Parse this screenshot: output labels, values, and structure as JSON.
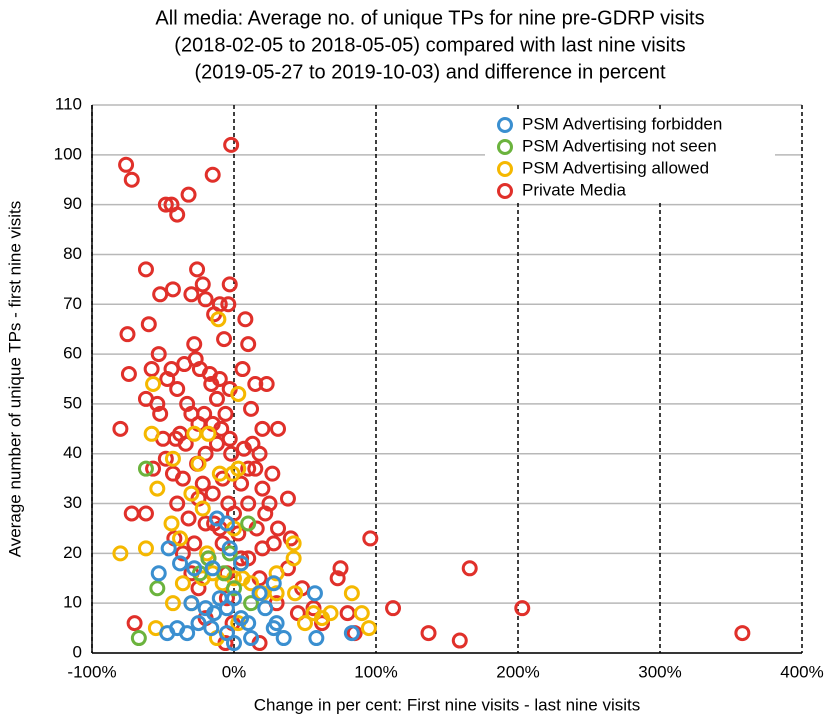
{
  "chart_data": {
    "type": "scatter",
    "title": [
      "All media: Average no. of unique TPs for nine pre-GDRP visits",
      "(2018-02-05 to 2018-05-05) compared with last nine visits",
      "(2019-05-27 to 2019-10-03) and difference in percent"
    ],
    "x_label": "Change in per cent:  First nine visits - last nine visits",
    "y_label": "Average number of unique TPs - first nine visits",
    "xlim": [
      -100,
      400
    ],
    "ylim": [
      0,
      110
    ],
    "xticks": [
      {
        "value": -100,
        "label": "-100%"
      },
      {
        "value": 0,
        "label": "0%"
      },
      {
        "value": 100,
        "label": "100%"
      },
      {
        "value": 200,
        "label": "200%"
      },
      {
        "value": 300,
        "label": "300%"
      },
      {
        "value": 400,
        "label": "400%"
      }
    ],
    "yticks": [
      0,
      10,
      20,
      30,
      40,
      50,
      60,
      70,
      80,
      90,
      100,
      110
    ],
    "grid": true,
    "legend": "upper right",
    "series": [
      {
        "name": "Private Media",
        "color": "#e0302a",
        "x": [
          -76,
          -72,
          -2,
          -15,
          -32,
          -44,
          -40,
          -48,
          -62,
          -26,
          -22,
          -3,
          -20,
          -30,
          -52,
          -43,
          -10,
          -4,
          -14,
          -75,
          -60,
          -7,
          10,
          8,
          -28,
          -53,
          -35,
          -24,
          -17,
          -44,
          -74,
          -58,
          -27,
          6,
          15,
          23,
          -47,
          -40,
          -10,
          -16,
          -3,
          -12,
          -62,
          -54,
          -52,
          -80,
          -30,
          -21,
          12,
          -6,
          -25,
          -15,
          -41,
          -3,
          20,
          31,
          -34,
          -12,
          -2,
          13,
          18,
          -48,
          -26,
          -20,
          10,
          27,
          -57,
          -43,
          -36,
          -8,
          5,
          20,
          -40,
          -25,
          -15,
          -4,
          10,
          22,
          -62,
          -72,
          -32,
          -20,
          -10,
          3,
          16,
          31,
          40,
          -42,
          -28,
          -8,
          20,
          28,
          -36,
          -18,
          10,
          38,
          -5,
          18,
          48,
          75,
          73,
          96,
          166,
          -25,
          -5,
          30,
          56,
          80,
          112,
          203,
          -20,
          -1,
          62,
          -70,
          137,
          159,
          358,
          -6,
          18,
          -33,
          -38,
          38,
          -14,
          25,
          7,
          -50,
          -9,
          15,
          -22,
          0,
          5,
          -30,
          45,
          85
        ],
        "values": [
          98,
          95,
          102,
          96,
          92,
          90,
          88,
          90,
          77,
          77,
          74,
          74,
          71,
          72,
          72,
          73,
          70,
          70,
          68,
          64,
          66,
          63,
          62,
          67,
          62,
          60,
          58,
          57,
          56,
          57,
          56,
          57,
          59,
          57,
          54,
          54,
          55,
          53,
          55,
          54,
          53,
          51,
          51,
          50,
          48,
          45,
          48,
          48,
          49,
          48,
          46,
          46,
          43,
          43,
          45,
          45,
          42,
          42,
          40,
          42,
          40,
          39,
          38,
          40,
          37,
          36,
          37,
          36,
          35,
          35,
          34,
          33,
          30,
          31,
          32,
          30,
          30,
          28,
          28,
          28,
          27,
          26,
          25,
          24,
          25,
          25,
          23,
          23,
          22,
          22,
          21,
          22,
          20,
          19,
          19,
          17,
          16,
          15,
          13,
          17,
          15,
          23,
          17,
          13,
          11,
          10,
          9,
          8,
          9,
          9,
          7,
          6,
          6,
          6,
          4,
          2.5,
          4,
          2,
          2,
          50,
          44,
          31,
          26,
          30,
          41,
          43,
          45,
          37,
          34,
          28,
          19,
          16,
          8,
          4
        ]
      },
      {
        "name": "PSM Advertising allowed",
        "color": "#f5b800",
        "x": [
          -80,
          -57,
          -58,
          -54,
          -62,
          -43,
          -44,
          -38,
          -36,
          -43,
          -30,
          -28,
          -18,
          -25,
          -30,
          -22,
          -19,
          -22,
          -15,
          -8,
          -11,
          3,
          3,
          -1,
          -10,
          0,
          5,
          0,
          6,
          12,
          20,
          30,
          42,
          42,
          30,
          43,
          50,
          56,
          62,
          68,
          83,
          90,
          95,
          -55,
          3,
          -12
        ],
        "values": [
          20,
          54,
          44,
          33,
          21,
          39,
          26,
          23,
          14,
          10,
          10,
          44,
          44,
          38,
          32,
          29,
          20,
          15,
          16,
          14,
          67,
          52,
          37,
          36,
          36,
          25,
          18,
          15,
          15,
          14,
          12,
          16,
          22,
          19,
          12,
          12,
          6,
          8,
          7,
          8,
          12,
          8,
          5,
          5,
          6,
          3
        ]
      },
      {
        "name": "PSM Advertising not seen",
        "color": "#6bb33d",
        "x": [
          -62,
          -54,
          -67,
          -24,
          -18,
          -7,
          10,
          12,
          0,
          -3
        ],
        "values": [
          37,
          13,
          3,
          16,
          19,
          16,
          26,
          10,
          13,
          20
        ]
      },
      {
        "name": "PSM Advertising forbidden",
        "color": "#3a8fd0",
        "x": [
          -46,
          -53,
          -38,
          -28,
          -15,
          -3,
          -12,
          -5,
          5,
          28,
          18,
          -30,
          -20,
          -14,
          -5,
          0,
          5,
          10,
          -40,
          -47,
          -33,
          -25,
          -16,
          -5,
          0,
          12,
          28,
          35,
          58,
          57,
          83,
          30,
          -10,
          22
        ],
        "values": [
          21,
          16,
          18,
          17,
          17,
          21,
          27,
          26,
          18,
          14,
          12,
          10,
          9,
          8,
          9,
          11,
          7,
          6,
          5,
          4,
          4,
          6,
          5,
          4,
          2,
          3,
          5,
          3,
          3,
          12,
          4,
          6,
          11,
          9
        ]
      }
    ]
  }
}
